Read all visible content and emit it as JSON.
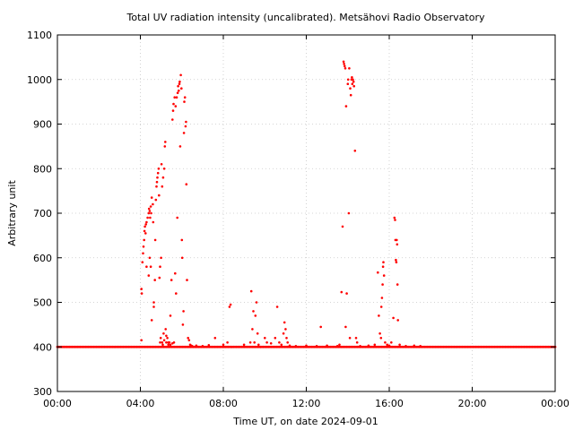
{
  "chart_data": {
    "type": "scatter",
    "title": "Total UV radiation intensity (uncalibrated). Metsähovi Radio Observatory",
    "xlabel": "Time UT, on date 2024-09-01",
    "ylabel": "Arbitrary unit",
    "xlim": [
      0,
      24
    ],
    "ylim": [
      300,
      1100
    ],
    "x_ticks": [
      0,
      4,
      8,
      12,
      16,
      20,
      24
    ],
    "x_tick_labels": [
      "00:00",
      "04:00",
      "08:00",
      "12:00",
      "16:00",
      "20:00",
      "00:00"
    ],
    "y_ticks": [
      300,
      400,
      500,
      600,
      700,
      800,
      900,
      1000,
      1100
    ],
    "y_tick_labels": [
      "300",
      "400",
      "500",
      "600",
      "700",
      "800",
      "900",
      "1000",
      "1100"
    ],
    "grid": true,
    "series": [
      {
        "color": "#ff0000",
        "baseline": {
          "value": 400,
          "x_start": 0,
          "x_end": 24
        },
        "points": [
          [
            4.05,
            415
          ],
          [
            4.05,
            530
          ],
          [
            4.07,
            520
          ],
          [
            4.1,
            590
          ],
          [
            4.13,
            610
          ],
          [
            4.15,
            625
          ],
          [
            4.18,
            640
          ],
          [
            4.2,
            660
          ],
          [
            4.22,
            670
          ],
          [
            4.25,
            655
          ],
          [
            4.27,
            675
          ],
          [
            4.3,
            680
          ],
          [
            4.3,
            580
          ],
          [
            4.35,
            690
          ],
          [
            4.4,
            700
          ],
          [
            4.42,
            710
          ],
          [
            4.45,
            705
          ],
          [
            4.47,
            690
          ],
          [
            4.5,
            715
          ],
          [
            4.52,
            700
          ],
          [
            4.55,
            735
          ],
          [
            4.4,
            560
          ],
          [
            4.45,
            600
          ],
          [
            4.5,
            580
          ],
          [
            4.55,
            460
          ],
          [
            4.6,
            720
          ],
          [
            4.62,
            680
          ],
          [
            4.65,
            500
          ],
          [
            4.65,
            490
          ],
          [
            4.7,
            550
          ],
          [
            4.72,
            640
          ],
          [
            4.75,
            730
          ],
          [
            4.78,
            760
          ],
          [
            4.8,
            770
          ],
          [
            4.82,
            780
          ],
          [
            4.85,
            790
          ],
          [
            4.88,
            800
          ],
          [
            4.9,
            740
          ],
          [
            4.92,
            555
          ],
          [
            4.95,
            580
          ],
          [
            4.98,
            420
          ],
          [
            5.0,
            600
          ],
          [
            5.02,
            810
          ],
          [
            5.05,
            760
          ],
          [
            5.05,
            410
          ],
          [
            5.1,
            780
          ],
          [
            5.12,
            430
          ],
          [
            5.15,
            800
          ],
          [
            5.18,
            850
          ],
          [
            5.2,
            860
          ],
          [
            5.22,
            440
          ],
          [
            5.25,
            410
          ],
          [
            5.3,
            420
          ],
          [
            5.35,
            405
          ],
          [
            5.4,
            410
          ],
          [
            5.45,
            470
          ],
          [
            5.5,
            550
          ],
          [
            5.55,
            910
          ],
          [
            5.58,
            930
          ],
          [
            5.6,
            945
          ],
          [
            5.62,
            410
          ],
          [
            5.65,
            960
          ],
          [
            5.68,
            565
          ],
          [
            5.7,
            940
          ],
          [
            5.72,
            520
          ],
          [
            5.75,
            960
          ],
          [
            5.78,
            690
          ],
          [
            5.8,
            970
          ],
          [
            5.82,
            985
          ],
          [
            5.85,
            975
          ],
          [
            5.88,
            990
          ],
          [
            5.9,
            995
          ],
          [
            5.92,
            850
          ],
          [
            5.95,
            1010
          ],
          [
            5.98,
            980
          ],
          [
            6.0,
            640
          ],
          [
            6.02,
            600
          ],
          [
            6.05,
            450
          ],
          [
            6.08,
            480
          ],
          [
            6.1,
            880
          ],
          [
            6.12,
            950
          ],
          [
            6.15,
            960
          ],
          [
            6.18,
            895
          ],
          [
            6.2,
            905
          ],
          [
            6.22,
            765
          ],
          [
            6.25,
            550
          ],
          [
            6.3,
            420
          ],
          [
            6.35,
            415
          ],
          [
            6.4,
            405
          ],
          [
            6.45,
            403
          ],
          [
            4.95,
            410
          ],
          [
            5.08,
            405
          ],
          [
            5.15,
            415
          ],
          [
            5.25,
            425
          ],
          [
            5.35,
            410
          ],
          [
            5.45,
            405
          ],
          [
            5.55,
            408
          ],
          [
            6.5,
            402
          ],
          [
            6.7,
            403
          ],
          [
            7.0,
            402
          ],
          [
            7.3,
            404
          ],
          [
            7.6,
            420
          ],
          [
            8.0,
            405
          ],
          [
            8.2,
            410
          ],
          [
            8.3,
            490
          ],
          [
            8.35,
            495
          ],
          [
            8.4,
            400
          ],
          [
            9.0,
            405
          ],
          [
            9.3,
            410
          ],
          [
            9.35,
            525
          ],
          [
            9.4,
            440
          ],
          [
            9.45,
            480
          ],
          [
            9.5,
            410
          ],
          [
            9.55,
            470
          ],
          [
            9.6,
            500
          ],
          [
            9.65,
            430
          ],
          [
            9.7,
            405
          ],
          [
            9.8,
            400
          ],
          [
            10.0,
            420
          ],
          [
            10.1,
            410
          ],
          [
            10.3,
            408
          ],
          [
            10.5,
            420
          ],
          [
            10.6,
            490
          ],
          [
            10.7,
            410
          ],
          [
            10.8,
            405
          ],
          [
            10.9,
            430
          ],
          [
            10.95,
            455
          ],
          [
            11.0,
            440
          ],
          [
            11.05,
            420
          ],
          [
            11.1,
            410
          ],
          [
            11.2,
            403
          ],
          [
            11.5,
            402
          ],
          [
            12.0,
            403
          ],
          [
            12.5,
            402
          ],
          [
            12.7,
            445
          ],
          [
            13.0,
            403
          ],
          [
            13.5,
            402
          ],
          [
            13.6,
            405
          ],
          [
            13.7,
            523
          ],
          [
            13.75,
            670
          ],
          [
            13.8,
            1040
          ],
          [
            13.82,
            1035
          ],
          [
            13.85,
            1030
          ],
          [
            13.88,
            1025
          ],
          [
            13.9,
            445
          ],
          [
            13.92,
            940
          ],
          [
            13.95,
            520
          ],
          [
            14.0,
            990
          ],
          [
            14.02,
            1000
          ],
          [
            14.05,
            700
          ],
          [
            14.07,
            1025
          ],
          [
            14.1,
            420
          ],
          [
            14.12,
            980
          ],
          [
            14.15,
            965
          ],
          [
            14.18,
            1000
          ],
          [
            14.2,
            1005
          ],
          [
            14.22,
            990
          ],
          [
            14.25,
            1000
          ],
          [
            14.28,
            995
          ],
          [
            14.3,
            985
          ],
          [
            14.35,
            840
          ],
          [
            14.4,
            420
          ],
          [
            14.45,
            410
          ],
          [
            14.6,
            402
          ],
          [
            15.0,
            403
          ],
          [
            15.3,
            405
          ],
          [
            15.45,
            567
          ],
          [
            15.5,
            470
          ],
          [
            15.55,
            430
          ],
          [
            15.6,
            420
          ],
          [
            15.62,
            490
          ],
          [
            15.65,
            510
          ],
          [
            15.68,
            540
          ],
          [
            15.7,
            580
          ],
          [
            15.72,
            590
          ],
          [
            15.75,
            560
          ],
          [
            15.8,
            410
          ],
          [
            15.9,
            405
          ],
          [
            16.0,
            403
          ],
          [
            16.1,
            410
          ],
          [
            16.2,
            465
          ],
          [
            16.25,
            690
          ],
          [
            16.28,
            685
          ],
          [
            16.3,
            640
          ],
          [
            16.32,
            595
          ],
          [
            16.34,
            590
          ],
          [
            16.36,
            640
          ],
          [
            16.38,
            630
          ],
          [
            16.4,
            540
          ],
          [
            16.42,
            460
          ],
          [
            16.5,
            405
          ],
          [
            16.8,
            402
          ],
          [
            17.2,
            403
          ],
          [
            17.5,
            402
          ]
        ]
      }
    ]
  }
}
